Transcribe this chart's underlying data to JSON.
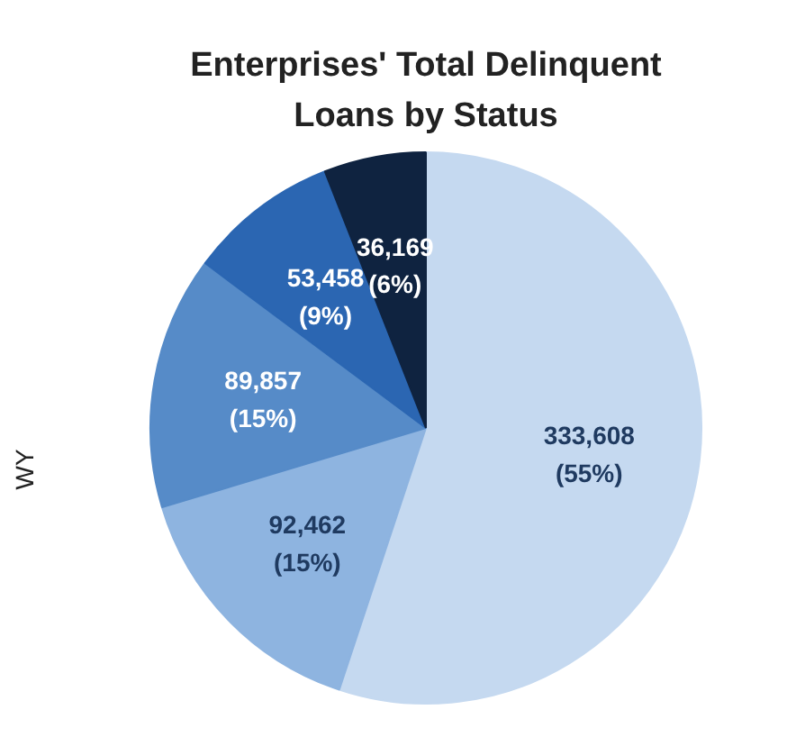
{
  "chart_data": {
    "type": "pie",
    "title": "Enterprises' Total Delinquent\nLoans by Status",
    "categories": [
      null,
      null,
      null,
      null,
      null
    ],
    "values": [
      333608,
      92462,
      89857,
      53458,
      36169
    ],
    "colors": [
      "#c5d9f0",
      "#8eb4e0",
      "#568bc8",
      "#2b66b2",
      "#0f2340"
    ],
    "value_labels": [
      "333,608\n(55%)",
      "92,462\n(15%)",
      "89,857\n(15%)",
      "53,458\n(9%)",
      "36,169\n(6%)"
    ],
    "annotations": [
      "WY"
    ]
  }
}
